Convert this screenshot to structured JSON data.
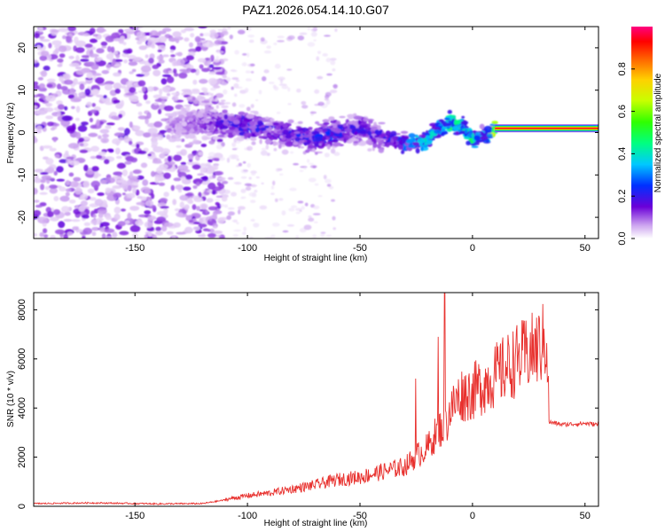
{
  "title": "PAZ1.2026.054.14.10.G07",
  "chart_data": [
    {
      "type": "heatmap",
      "xlabel": "Height of straight line (km)",
      "ylabel": "Frequency (Hz)",
      "xlim": [
        -195,
        56
      ],
      "ylim": [
        -25,
        25
      ],
      "xticks": [
        -150,
        -100,
        -50,
        0,
        50
      ],
      "xtick_labels": [
        "-150",
        "-100",
        "-50",
        "0",
        "50"
      ],
      "yticks": [
        -20,
        -10,
        0,
        10,
        20
      ],
      "ytick_labels": [
        "-20",
        "-10",
        "0",
        "10",
        "20"
      ],
      "ridge": {
        "x": [
          -130,
          -120,
          -110,
          -100,
          -90,
          -80,
          -70,
          -60,
          -50,
          -40,
          -30,
          -20,
          -15,
          -10,
          -5,
          0,
          5,
          10,
          20,
          35,
          56
        ],
        "freq": [
          1.5,
          2.5,
          2.0,
          1.5,
          0.5,
          -0.5,
          -1.5,
          0.0,
          1.0,
          -1.0,
          -2.5,
          -2.0,
          1.0,
          2.5,
          1.5,
          -1.5,
          -1.0,
          1.0,
          1.0,
          1.0,
          1.0
        ],
        "amplitude": [
          0.1,
          0.15,
          0.2,
          0.25,
          0.2,
          0.2,
          0.25,
          0.25,
          0.2,
          0.2,
          0.3,
          0.45,
          0.3,
          0.6,
          0.4,
          0.5,
          0.35,
          0.9,
          0.9,
          0.9,
          0.9
        ]
      },
      "colorbar": {
        "label": "Normalized spectral amplitude",
        "range": [
          0,
          1
        ],
        "ticks": [
          0.0,
          0.2,
          0.4,
          0.6,
          0.8
        ],
        "tick_labels": [
          "0.0",
          "0.2",
          "0.4",
          "0.6",
          "0.8"
        ]
      }
    },
    {
      "type": "line",
      "xlabel": "Height of straight line (km)",
      "ylabel": "SNR (10 * v/v)",
      "xlim": [
        -195,
        56
      ],
      "ylim": [
        0,
        8700
      ],
      "xticks": [
        -150,
        -100,
        -50,
        0,
        50
      ],
      "xtick_labels": [
        "-150",
        "-100",
        "-50",
        "0",
        "50"
      ],
      "yticks": [
        0,
        2000,
        4000,
        6000,
        8000
      ],
      "ytick_labels": [
        "0",
        "2000",
        "4000",
        "6000",
        "8000"
      ],
      "series": [
        {
          "name": "SNR",
          "color": "#e8312e",
          "x": [
            -195,
            -170,
            -140,
            -120,
            -110,
            -100,
            -90,
            -80,
            -70,
            -60,
            -50,
            -40,
            -30,
            -25,
            -20,
            -15,
            -12,
            -10,
            -5,
            0,
            10,
            20,
            30,
            33,
            34,
            40,
            50,
            56
          ],
          "y": [
            100,
            130,
            90,
            100,
            250,
            400,
            500,
            650,
            800,
            1000,
            1100,
            1300,
            1500,
            1900,
            2200,
            2900,
            3000,
            3600,
            4200,
            4300,
            4900,
            5500,
            6000,
            6300,
            3400,
            3300,
            3350,
            3300
          ]
        }
      ]
    }
  ]
}
